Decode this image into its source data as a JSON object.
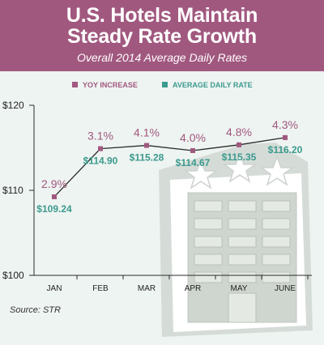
{
  "header": {
    "title_line1": "U.S. Hotels Maintain",
    "title_line2": "Steady Rate Growth",
    "subtitle": "Overall 2014 Average Daily Rates"
  },
  "legend": {
    "yoy_label": "YOY INCREASE",
    "adr_label": "AVERAGE DAILY RATE"
  },
  "source": "Source: STR",
  "colors": {
    "header": "#a1587f",
    "yoy": "#a1587f",
    "adr": "#3b9a8e",
    "line": "#2b2b2b",
    "background": "#eef4f1"
  },
  "chart_data": {
    "type": "line",
    "categories": [
      "JAN",
      "FEB",
      "MAR",
      "APR",
      "MAY",
      "JUNE"
    ],
    "series": [
      {
        "name": "AVERAGE DAILY RATE",
        "values": [
          109.24,
          114.9,
          115.28,
          114.67,
          115.35,
          116.2
        ]
      }
    ],
    "yoy_increase": [
      "2.9%",
      "3.1%",
      "4.1%",
      "4.0%",
      "4.8%",
      "4.3%"
    ],
    "value_labels": [
      "$109.24",
      "$114.90",
      "$115.28",
      "$114.67",
      "$115.35",
      "$116.20"
    ],
    "yticks": [
      "$100",
      "$110",
      "$120"
    ],
    "ylim": [
      100,
      120
    ],
    "grid": false,
    "legend_position": "top"
  }
}
